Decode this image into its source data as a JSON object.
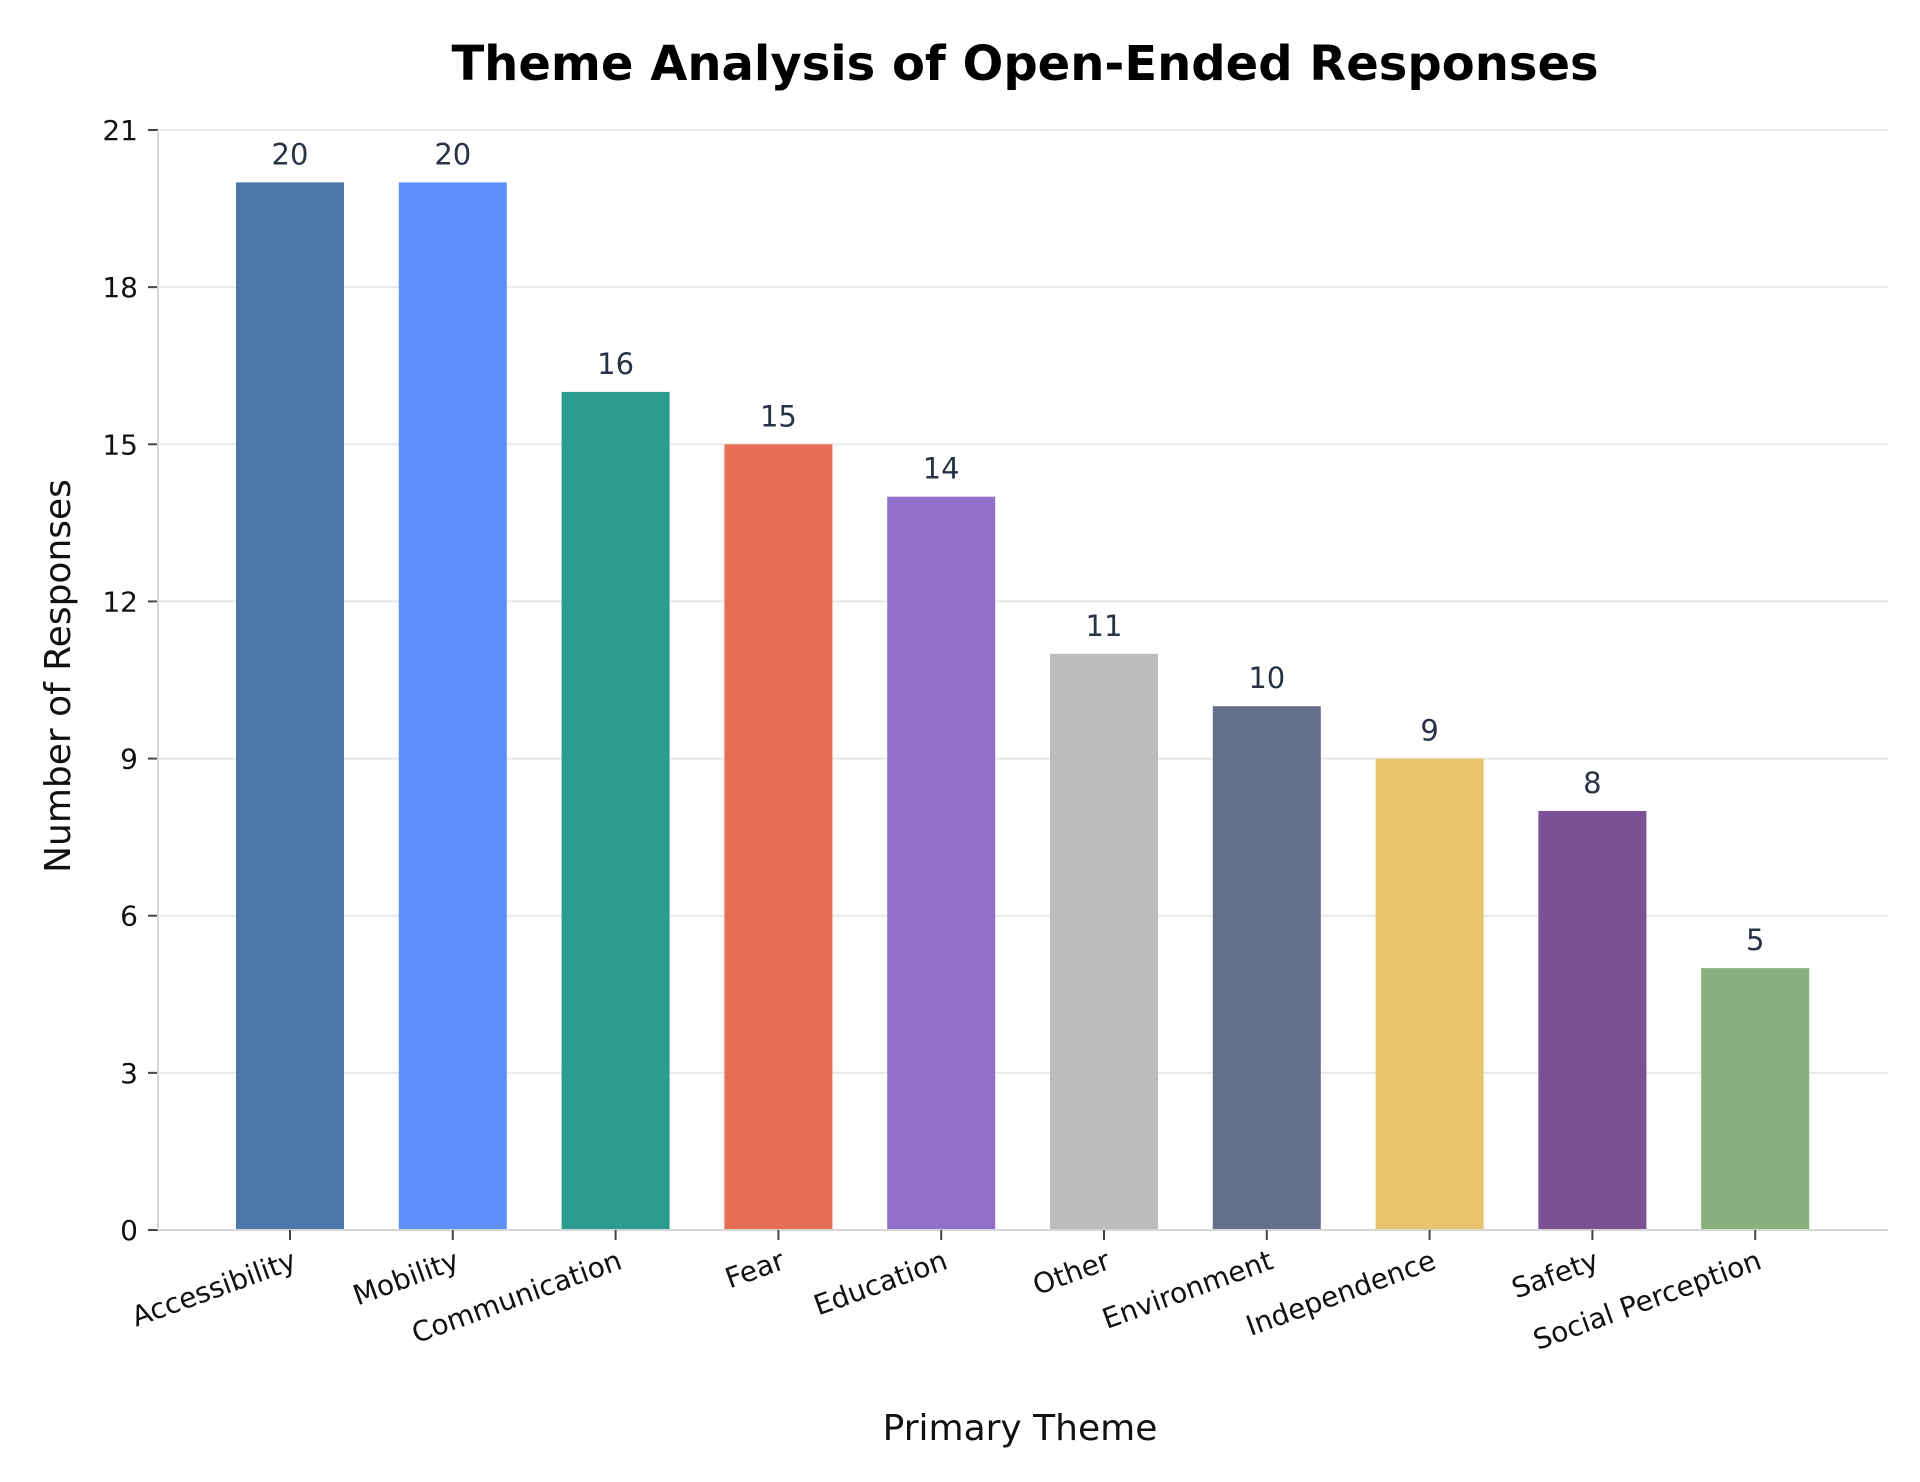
{
  "chart_data": {
    "type": "bar",
    "title": "Theme Analysis of Open-Ended Responses",
    "xlabel": "Primary Theme",
    "ylabel": "Number of Responses",
    "categories": [
      "Accessibility",
      "Mobility",
      "Communication",
      "Fear",
      "Education",
      "Other",
      "Environment",
      "Independence",
      "Safety",
      "Social Perception"
    ],
    "values": [
      20,
      20,
      16,
      15,
      14,
      11,
      10,
      9,
      8,
      5
    ],
    "colors": [
      "#4a78a8",
      "#5b8ff9",
      "#2a9d8f",
      "#e76f51",
      "#9270c9",
      "#bdbdbd",
      "#64708a",
      "#e9c46a",
      "#7a5195",
      "#8ab17d"
    ],
    "ylim": [
      0,
      21
    ],
    "yticks": [
      0,
      3,
      6,
      9,
      12,
      15,
      18,
      21
    ],
    "grid": "horizontal",
    "legend": "none",
    "data_labels": true
  }
}
